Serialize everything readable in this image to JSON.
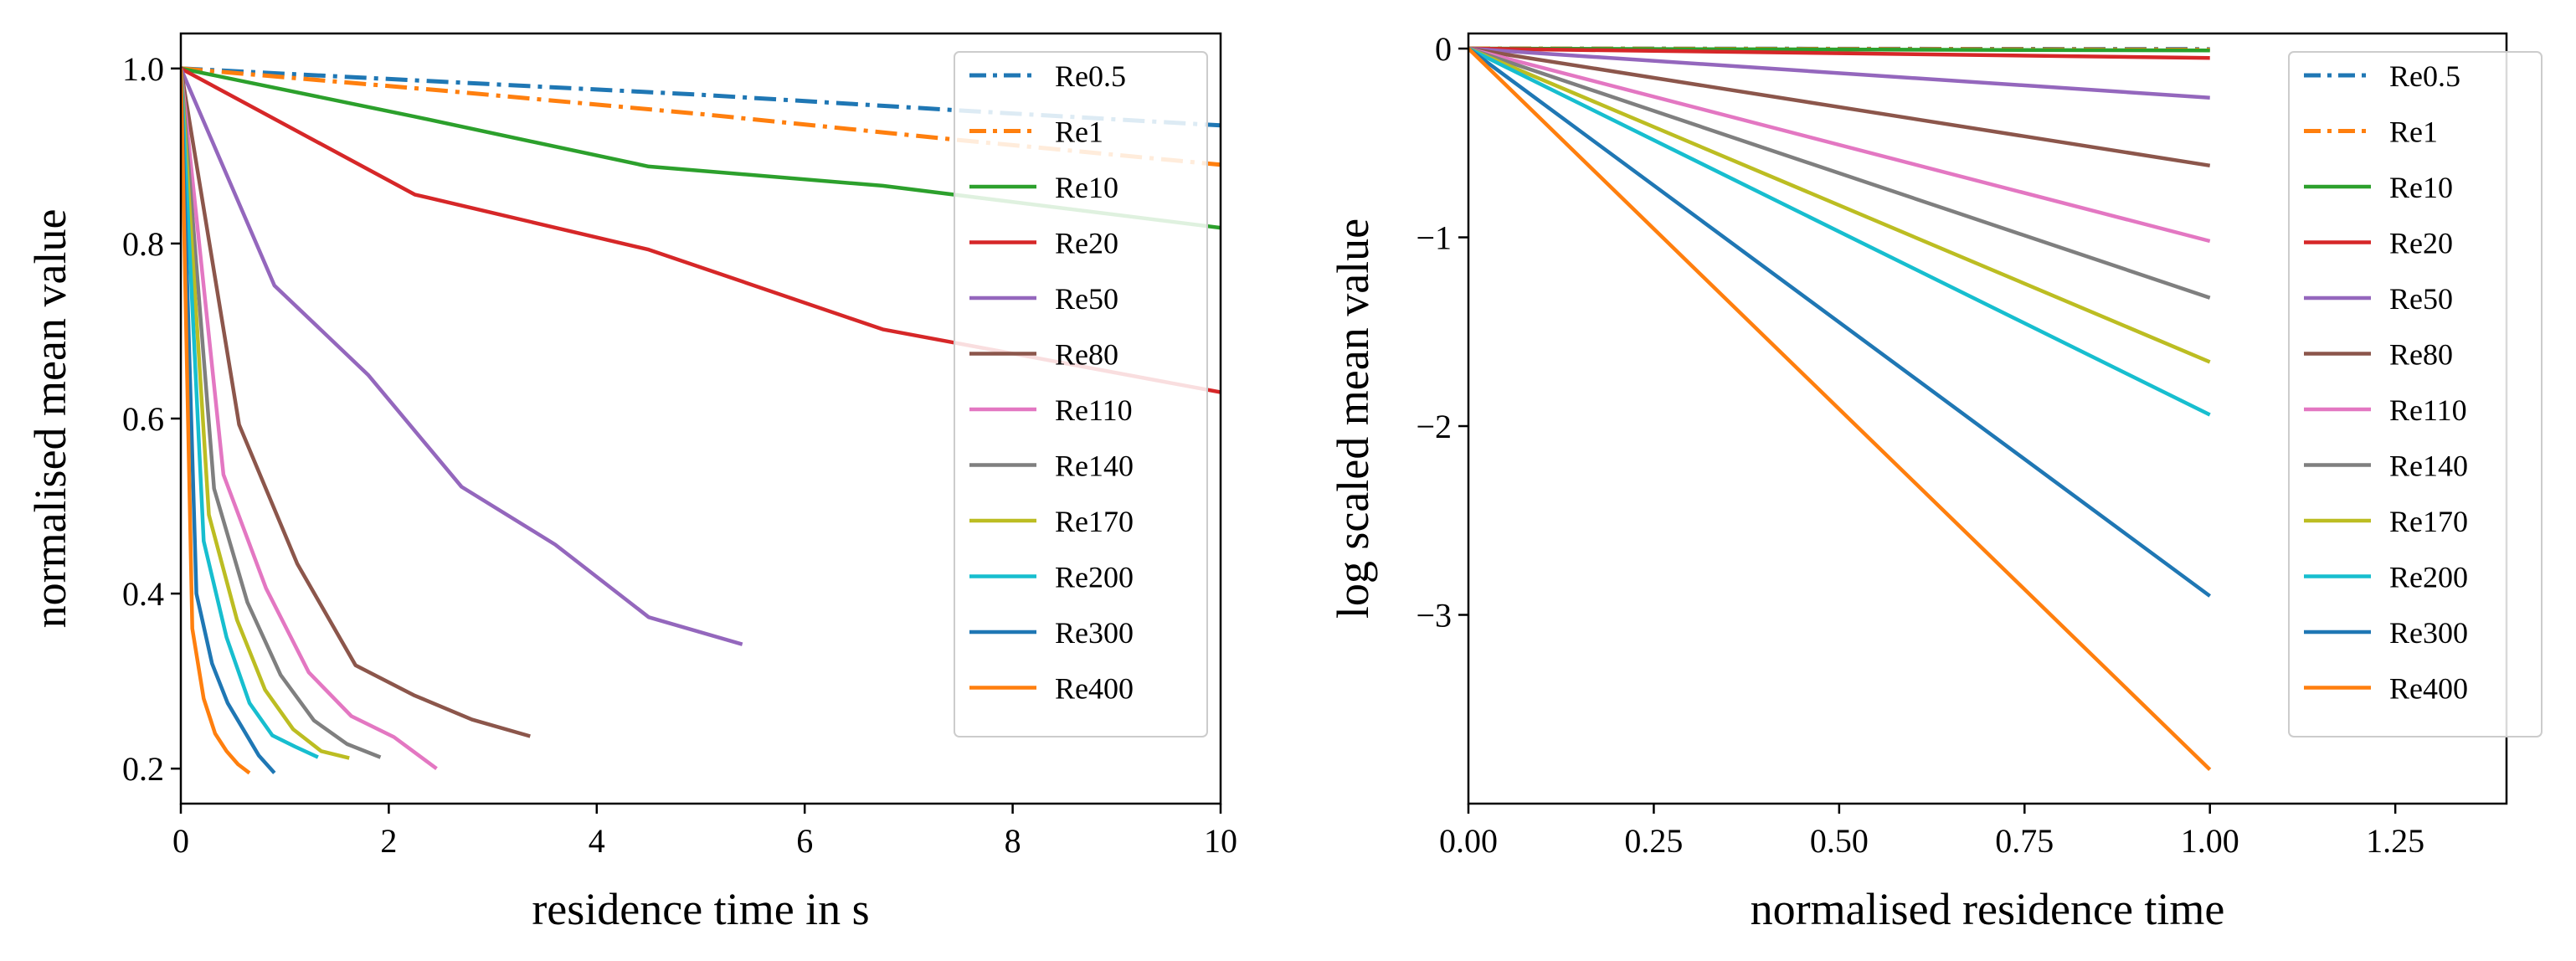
{
  "chart_data": [
    {
      "type": "line",
      "xlabel": "residence time in s",
      "ylabel": "normalised mean value",
      "xlim": [
        0,
        10
      ],
      "ylim": [
        0.16,
        1.04
      ],
      "xticks": [
        "0",
        "2",
        "4",
        "6",
        "8",
        "10"
      ],
      "yticks": [
        "0.2",
        "0.4",
        "0.6",
        "0.8",
        "1.0"
      ],
      "grid": false,
      "legend_position": "top-right",
      "series": [
        {
          "name": "Re0.5",
          "color": "#1f77b4",
          "dash": "dashdot",
          "x": [
            0,
            2.5,
            5,
            7.5,
            10
          ],
          "y": [
            1.0,
            0.985,
            0.97,
            0.952,
            0.935
          ]
        },
        {
          "name": "Re1",
          "color": "#ff7f0e",
          "dash": "dashdot",
          "x": [
            0,
            2.5,
            5,
            7.5,
            10
          ],
          "y": [
            1.0,
            0.975,
            0.948,
            0.918,
            0.89
          ]
        },
        {
          "name": "Re10",
          "color": "#2ca02c",
          "dash": "solid",
          "x": [
            0,
            2.25,
            4.5,
            6.75,
            10
          ],
          "y": [
            1.0,
            0.945,
            0.888,
            0.866,
            0.818
          ]
        },
        {
          "name": "Re20",
          "color": "#d62728",
          "dash": "solid",
          "x": [
            0,
            2.25,
            4.5,
            6.75,
            10
          ],
          "y": [
            1.0,
            0.856,
            0.793,
            0.702,
            0.63
          ]
        },
        {
          "name": "Re50",
          "color": "#9467bd",
          "dash": "solid",
          "x": [
            0,
            0.9,
            1.8,
            2.7,
            3.6,
            4.5,
            5.4
          ],
          "y": [
            1.0,
            0.752,
            0.65,
            0.522,
            0.456,
            0.373,
            0.342
          ]
        },
        {
          "name": "Re80",
          "color": "#8c564b",
          "dash": "solid",
          "x": [
            0,
            0.56,
            1.12,
            1.68,
            2.24,
            2.8,
            3.36
          ],
          "y": [
            1.0,
            0.593,
            0.434,
            0.318,
            0.284,
            0.256,
            0.237
          ]
        },
        {
          "name": "Re110",
          "color": "#e377c2",
          "dash": "solid",
          "x": [
            0,
            0.41,
            0.82,
            1.23,
            1.64,
            2.05,
            2.46
          ],
          "y": [
            1.0,
            0.536,
            0.406,
            0.31,
            0.26,
            0.236,
            0.2
          ]
        },
        {
          "name": "Re140",
          "color": "#7f7f7f",
          "dash": "solid",
          "x": [
            0,
            0.32,
            0.64,
            0.96,
            1.28,
            1.6,
            1.92
          ],
          "y": [
            1.0,
            0.52,
            0.39,
            0.307,
            0.255,
            0.228,
            0.213
          ]
        },
        {
          "name": "Re170",
          "color": "#bcbd22",
          "dash": "solid",
          "x": [
            0,
            0.27,
            0.54,
            0.81,
            1.08,
            1.35,
            1.62
          ],
          "y": [
            1.0,
            0.49,
            0.37,
            0.29,
            0.245,
            0.22,
            0.212
          ]
        },
        {
          "name": "Re200",
          "color": "#17becf",
          "dash": "solid",
          "x": [
            0,
            0.22,
            0.44,
            0.66,
            0.88,
            1.1,
            1.32
          ],
          "y": [
            1.0,
            0.46,
            0.35,
            0.275,
            0.238,
            0.225,
            0.213
          ]
        },
        {
          "name": "Re300",
          "color": "#1f77b4",
          "dash": "solid",
          "x": [
            0,
            0.15,
            0.3,
            0.45,
            0.6,
            0.75,
            0.9
          ],
          "y": [
            1.0,
            0.4,
            0.32,
            0.275,
            0.245,
            0.215,
            0.195
          ]
        },
        {
          "name": "Re400",
          "color": "#ff7f0e",
          "dash": "solid",
          "x": [
            0,
            0.11,
            0.22,
            0.33,
            0.44,
            0.55,
            0.66
          ],
          "y": [
            1.0,
            0.36,
            0.28,
            0.24,
            0.22,
            0.205,
            0.195
          ]
        }
      ]
    },
    {
      "type": "line",
      "xlabel": "normalised residence time",
      "ylabel": "log scaled mean value",
      "xlim": [
        0,
        1.4
      ],
      "ylim": [
        -4.0,
        0.08
      ],
      "xticks": [
        "0.00",
        "0.25",
        "0.50",
        "0.75",
        "1.00",
        "1.25"
      ],
      "yticks": [
        "0",
        "−1",
        "−2",
        "−3"
      ],
      "grid": false,
      "legend_position": "top-right",
      "series": [
        {
          "name": "Re0.5",
          "color": "#1f77b4",
          "dash": "dashdot",
          "x": [
            0,
            1
          ],
          "y": [
            0,
            -0.003
          ]
        },
        {
          "name": "Re1",
          "color": "#ff7f0e",
          "dash": "dashdot",
          "x": [
            0,
            1
          ],
          "y": [
            0,
            -0.006
          ]
        },
        {
          "name": "Re10",
          "color": "#2ca02c",
          "dash": "solid",
          "x": [
            0,
            1
          ],
          "y": [
            0,
            -0.01
          ]
        },
        {
          "name": "Re20",
          "color": "#d62728",
          "dash": "solid",
          "x": [
            0,
            1
          ],
          "y": [
            0,
            -0.05
          ]
        },
        {
          "name": "Re50",
          "color": "#9467bd",
          "dash": "solid",
          "x": [
            0,
            1
          ],
          "y": [
            0,
            -0.26
          ]
        },
        {
          "name": "Re80",
          "color": "#8c564b",
          "dash": "solid",
          "x": [
            0,
            1
          ],
          "y": [
            0,
            -0.62
          ]
        },
        {
          "name": "Re110",
          "color": "#e377c2",
          "dash": "solid",
          "x": [
            0,
            1
          ],
          "y": [
            0,
            -1.02
          ]
        },
        {
          "name": "Re140",
          "color": "#7f7f7f",
          "dash": "solid",
          "x": [
            0,
            1
          ],
          "y": [
            0,
            -1.32
          ]
        },
        {
          "name": "Re170",
          "color": "#bcbd22",
          "dash": "solid",
          "x": [
            0,
            1
          ],
          "y": [
            0,
            -1.66
          ]
        },
        {
          "name": "Re200",
          "color": "#17becf",
          "dash": "solid",
          "x": [
            0,
            1
          ],
          "y": [
            0,
            -1.94
          ]
        },
        {
          "name": "Re300",
          "color": "#1f77b4",
          "dash": "solid",
          "x": [
            0,
            1
          ],
          "y": [
            0,
            -2.9
          ]
        },
        {
          "name": "Re400",
          "color": "#ff7f0e",
          "dash": "solid",
          "x": [
            0,
            1
          ],
          "y": [
            0,
            -3.82
          ]
        }
      ]
    }
  ]
}
